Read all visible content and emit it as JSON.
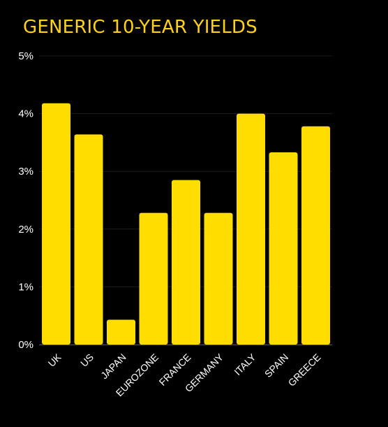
{
  "colors": {
    "background": "#000000",
    "bar": "#FFDD00",
    "title": "#FFD21A",
    "axis_text": "#FFFFFF",
    "grid": "#1C1C1C",
    "baseline": "#5A5A5A"
  },
  "chart_data": {
    "type": "bar",
    "title": "GENERIC 10-YEAR YIELDS",
    "xlabel": "",
    "ylabel": "",
    "categories": [
      "UK",
      "US",
      "JAPAN",
      "EUROZONE",
      "FRANCE",
      "GERMANY",
      "ITALY",
      "SPAIN",
      "GREECE"
    ],
    "values": [
      4.18,
      3.64,
      0.43,
      2.28,
      2.85,
      2.28,
      4.0,
      3.33,
      3.78
    ],
    "value_unit": "%",
    "ylim": [
      0,
      5
    ],
    "yticks": [
      0,
      1,
      2,
      3,
      4,
      5
    ],
    "ytick_labels": [
      "0%",
      "1%",
      "2%",
      "3%",
      "4%",
      "5%"
    ],
    "grid": true,
    "legend": "none"
  }
}
